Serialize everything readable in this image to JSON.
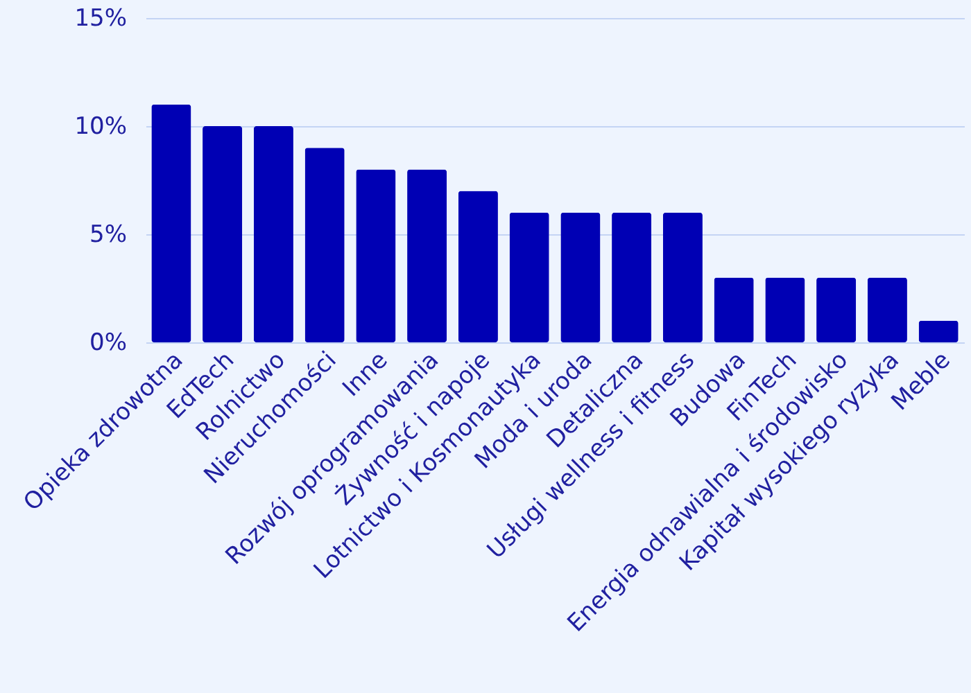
{
  "chart_data": {
    "type": "bar",
    "categories": [
      "Opieka zdrowotna",
      "EdTech",
      "Rolnictwo",
      "Nieruchomości",
      "Inne",
      "Rozwój oprogramowania",
      "Żywność i napoje",
      "Lotnictwo i Kosmonautyka",
      "Moda i uroda",
      "Detaliczna",
      "Usługi wellness i fitness",
      "Budowa",
      "FinTech",
      "Energia odnawialna i środowisko",
      "Kapitał wysokiego ryzyka",
      "Meble"
    ],
    "values": [
      11,
      10,
      10,
      9,
      8,
      8,
      7,
      6,
      6,
      6,
      6,
      3,
      3,
      3,
      3,
      1
    ],
    "color": "#0000b4",
    "ylim": [
      0,
      15
    ],
    "yticks": [
      {
        "value": 0,
        "label": "0%"
      },
      {
        "value": 5,
        "label": "5%"
      },
      {
        "value": 10,
        "label": "10%"
      },
      {
        "value": 15,
        "label": "15%"
      }
    ],
    "grid": "y"
  }
}
